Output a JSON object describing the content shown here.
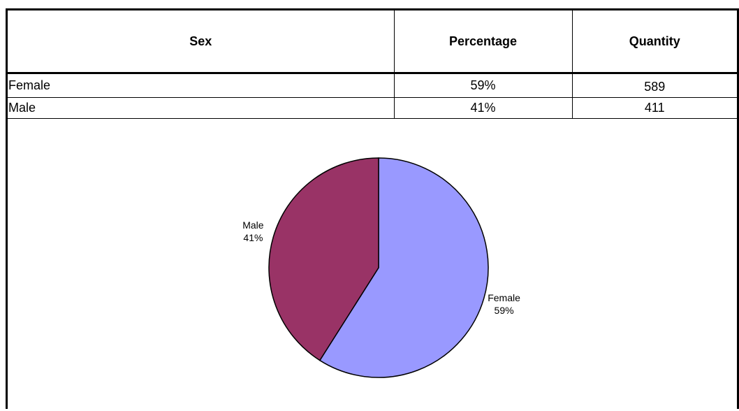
{
  "table": {
    "headers": [
      "Sex",
      "Percentage",
      "Quantity"
    ],
    "rows": [
      {
        "sex": "Female",
        "percentage": "59%",
        "quantity": "589"
      },
      {
        "sex": "Male",
        "percentage": "41%",
        "quantity": "411"
      }
    ]
  },
  "chart_data": {
    "type": "pie",
    "title": "",
    "labels": [
      "Female",
      "Male"
    ],
    "values": [
      59,
      41
    ],
    "value_labels": [
      "59%",
      "41%"
    ],
    "colors": [
      "#9999ff",
      "#993366"
    ],
    "start_angle_deg": 0,
    "direction": "clockwise"
  }
}
